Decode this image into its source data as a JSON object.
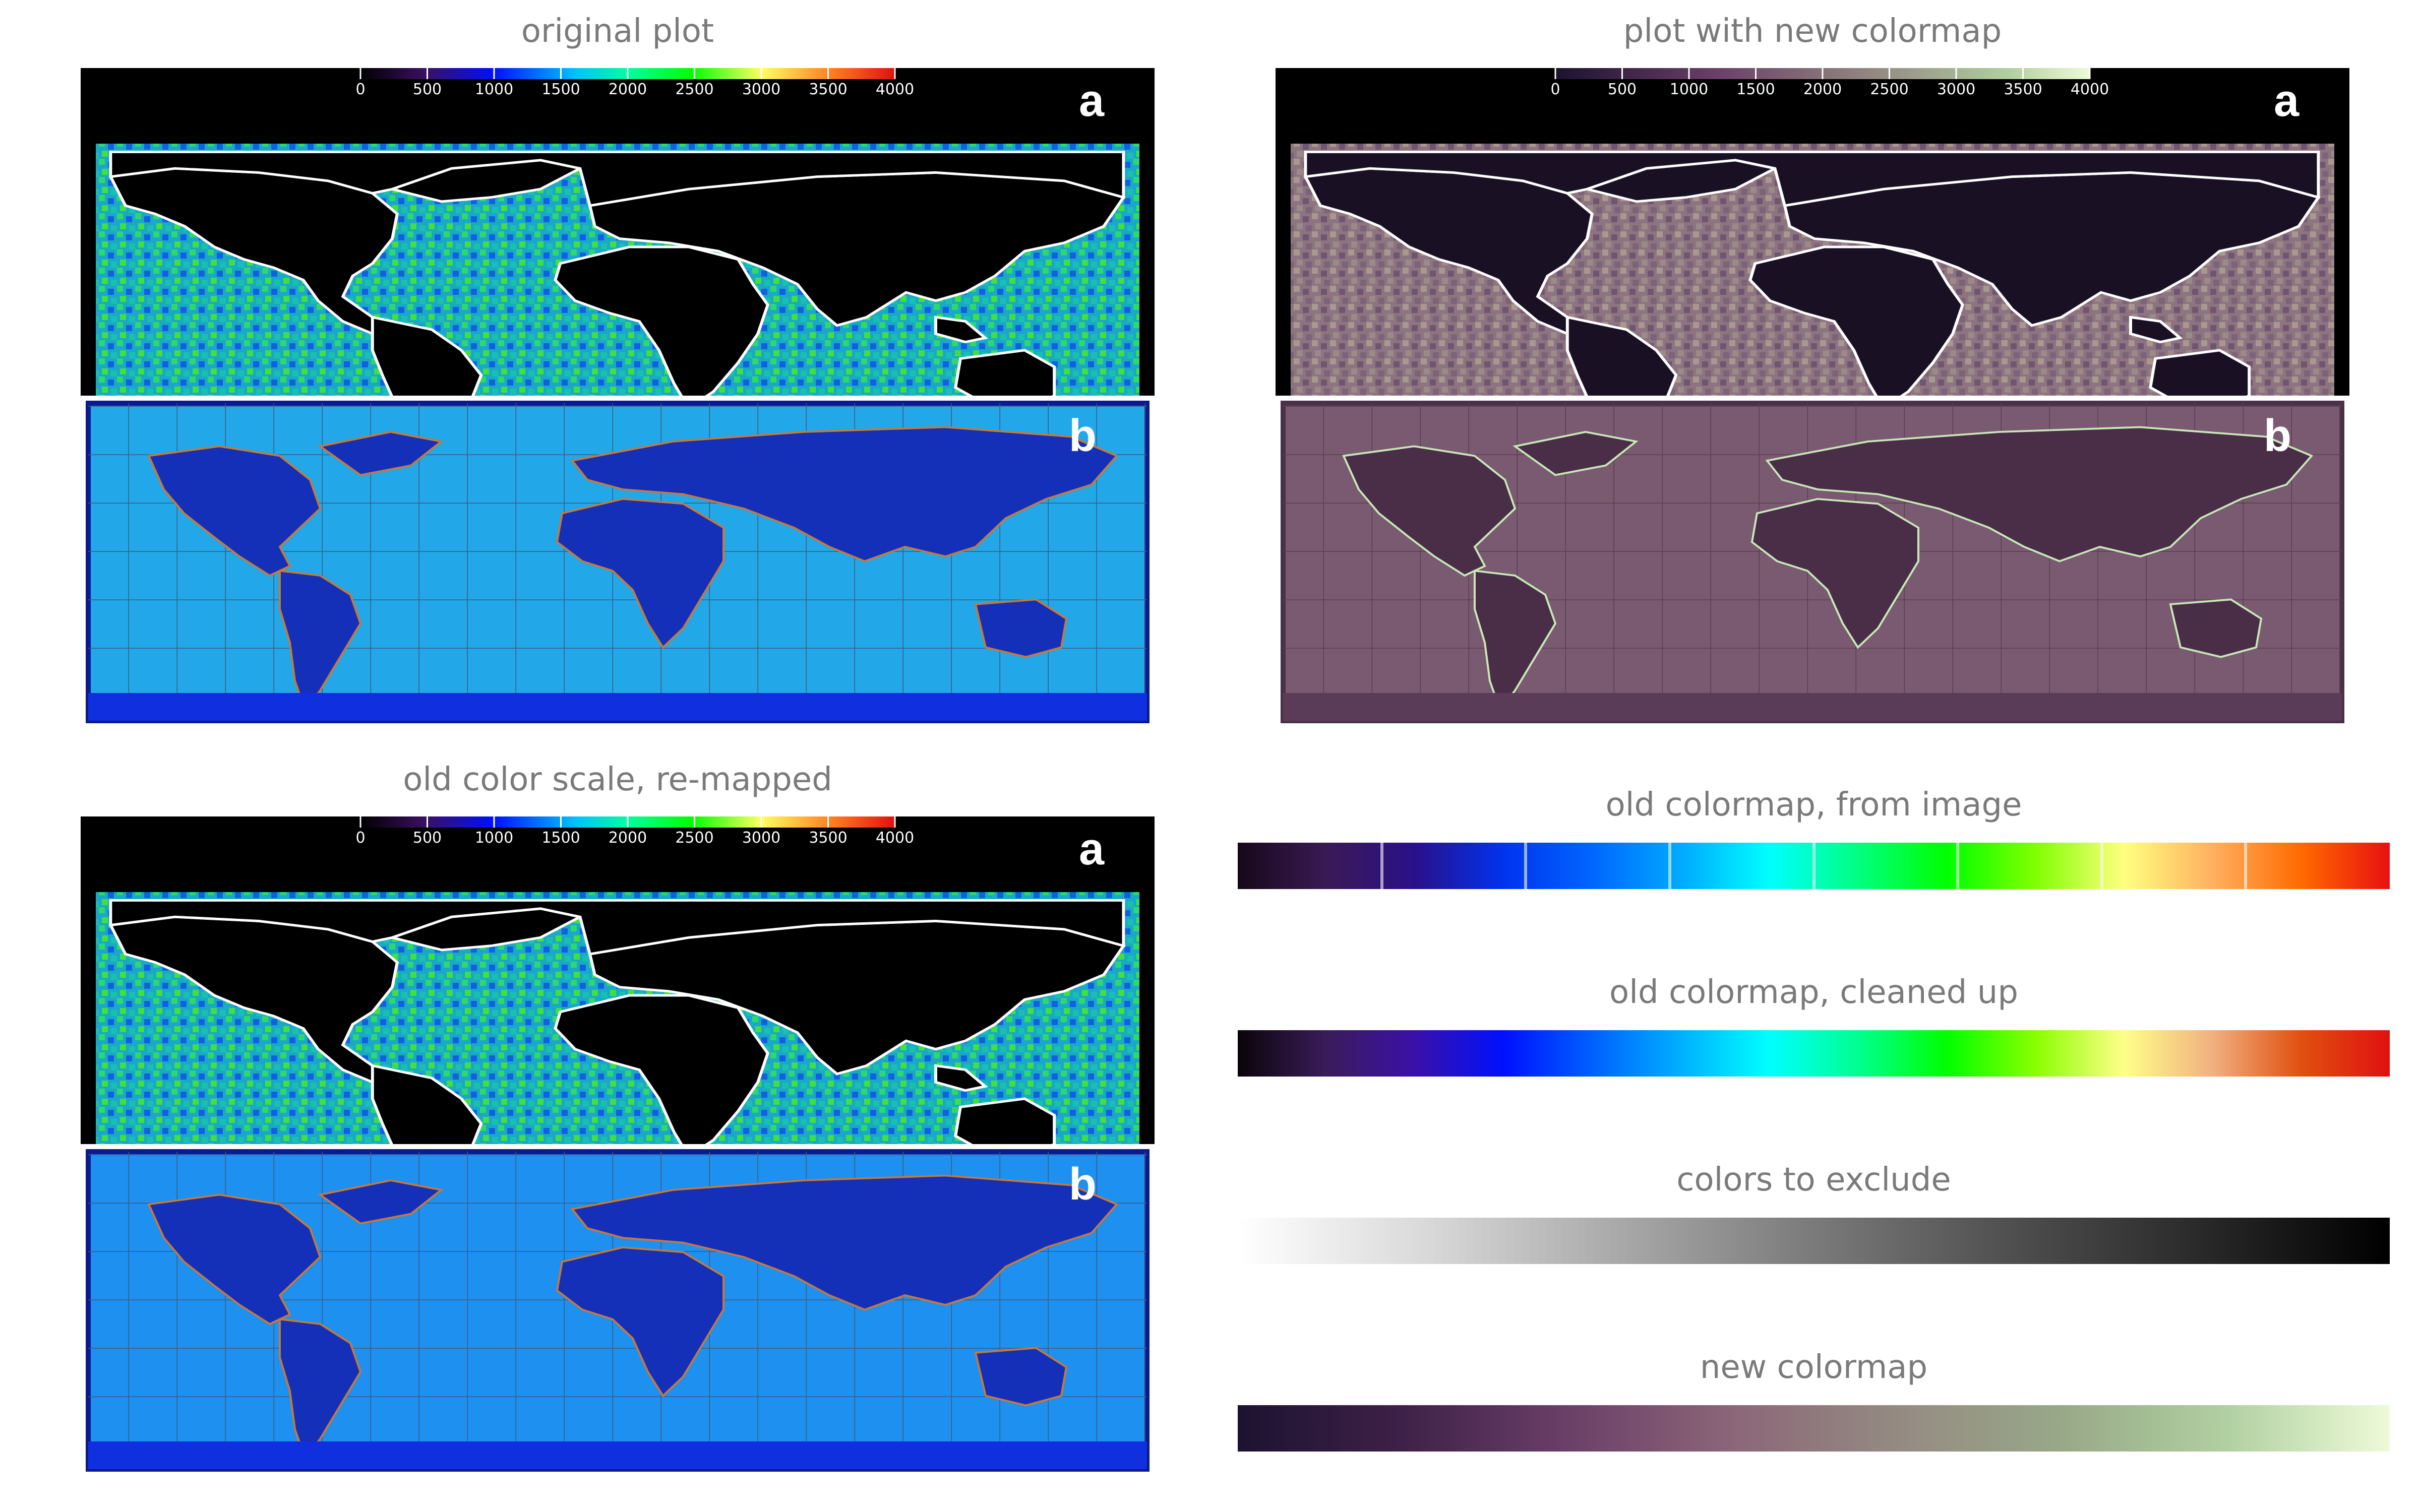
{
  "panels": {
    "original": {
      "title": "original plot"
    },
    "new": {
      "title": "plot with new colormap"
    },
    "remapped": {
      "title": "old color scale, re-mapped"
    }
  },
  "map_labels": {
    "a": "a",
    "b": "b"
  },
  "scale_ticks": [
    "0",
    "500",
    "1000",
    "1500",
    "2000",
    "2500",
    "3000",
    "3500",
    "4000"
  ],
  "colorbars": [
    {
      "title": "old colormap, from image",
      "stops": [
        "#160818",
        "#3a1a55",
        "#2a0f8a",
        "#0033ee",
        "#0066ff",
        "#00aaff",
        "#00ffff",
        "#00ff80",
        "#00ff00",
        "#80ff00",
        "#ffff80",
        "#ffb060",
        "#ff6a00",
        "#e81010"
      ]
    },
    {
      "title": "old colormap, cleaned up",
      "stops": [
        "#0a0408",
        "#3a1c5a",
        "#3a10a8",
        "#0010ff",
        "#0060ff",
        "#00b0ff",
        "#00ffff",
        "#00ff90",
        "#00ff00",
        "#88ff00",
        "#ffff88",
        "#f0b080",
        "#e05010",
        "#e01010"
      ]
    },
    {
      "title": "colors to exclude",
      "stops": [
        "#ffffff",
        "#d8d8d8",
        "#a8a8a8",
        "#7a7a7a",
        "#505050",
        "#2a2a2a",
        "#000000"
      ]
    },
    {
      "title": "new colormap",
      "stops": [
        "#1c1230",
        "#3e2148",
        "#6a3f68",
        "#8b6678",
        "#948a82",
        "#98a888",
        "#b0d0a0",
        "#eefad8"
      ]
    }
  ]
}
